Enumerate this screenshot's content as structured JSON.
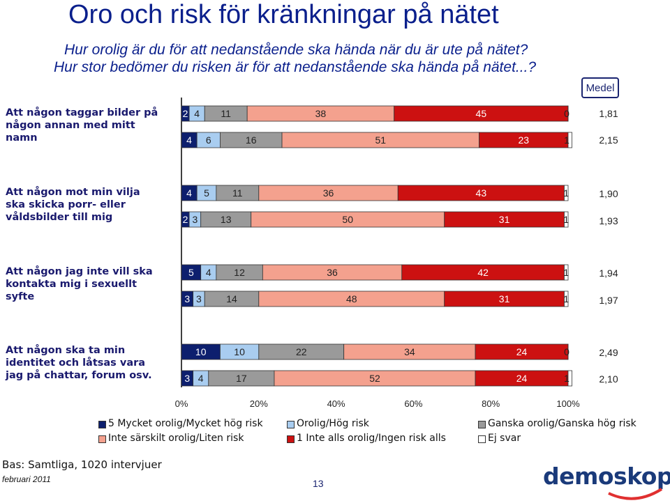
{
  "title": "Oro och risk för kränkningar på nätet",
  "subtitle_line1": "Hur orolig är du för att nedanstående ska hända när du är ute på nätet?",
  "subtitle_line2": "Hur stor bedömer du risken är för att nedanstående ska hända på nätet...?",
  "medel_label": "Medel",
  "colors": {
    "cat1": "#0d1f6e",
    "cat2": "#a9cdf0",
    "cat3": "#9a9a9a",
    "cat4": "#f4a18e",
    "cat5": "#cc1111",
    "cat6": "#ffffff"
  },
  "chart_data": {
    "type": "bar",
    "orientation": "horizontal",
    "stacked": true,
    "percent": true,
    "xlim": [
      0,
      100
    ],
    "x_ticks": [
      "0%",
      "20%",
      "40%",
      "60%",
      "80%",
      "100%"
    ],
    "series_names": [
      "5 Mycket orolig/Mycket hög risk",
      "Orolig/Hög risk",
      "Ganska orolig/Ganska hög risk",
      "Inte särskilt orolig/Liten risk",
      "1 Inte alls orolig/Ingen risk alls",
      "Ej svar"
    ],
    "groups": [
      {
        "label": "Att någon taggar bilder på någon annan med mitt namn",
        "bars": [
          {
            "values": [
              2,
              4,
              11,
              38,
              45,
              0
            ],
            "mean": "1,81"
          },
          {
            "values": [
              4,
              6,
              16,
              51,
              23,
              1
            ],
            "mean": "2,15"
          }
        ]
      },
      {
        "label": "Att någon mot min vilja ska skicka porr- eller våldsbilder till mig",
        "bars": [
          {
            "values": [
              4,
              5,
              11,
              36,
              43,
              1
            ],
            "mean": "1,90"
          },
          {
            "values": [
              2,
              3,
              13,
              50,
              31,
              1
            ],
            "mean": "1,93"
          }
        ]
      },
      {
        "label": "Att någon jag inte vill ska kontakta mig i sexuellt syfte",
        "bars": [
          {
            "values": [
              5,
              4,
              12,
              36,
              42,
              1
            ],
            "mean": "1,94"
          },
          {
            "values": [
              3,
              3,
              14,
              48,
              31,
              1
            ],
            "mean": "1,97"
          }
        ]
      },
      {
        "label": "Att någon ska ta min identitet och låtsas vara jag på chattar, forum osv.",
        "bars": [
          {
            "values": [
              10,
              10,
              22,
              34,
              24,
              0
            ],
            "mean": "2,49"
          },
          {
            "values": [
              3,
              4,
              17,
              52,
              24,
              1
            ],
            "mean": "2,10"
          }
        ]
      }
    ]
  },
  "footer": {
    "bas": "Bas: Samtliga, 1020 intervjuer",
    "date": "februari 2011",
    "page": "13",
    "logo": "demoskop"
  }
}
